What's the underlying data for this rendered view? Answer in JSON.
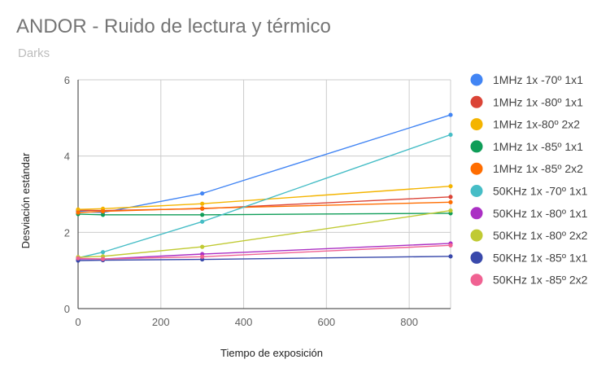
{
  "chart_data": {
    "type": "line",
    "title": "ANDOR - Ruido de lectura y térmico",
    "subtitle": "Darks",
    "xlabel": "Tiempo de exposición",
    "ylabel": "Desviación estándar",
    "xlim": [
      0,
      900
    ],
    "ylim": [
      0,
      6
    ],
    "xticks": [
      0,
      200,
      400,
      600,
      800
    ],
    "yticks": [
      0,
      2,
      4,
      6
    ],
    "grid": true,
    "legend": "right",
    "series": [
      {
        "name": "1MHz 1x -70º 1x1",
        "color": "#4285f4",
        "x": [
          0,
          60,
          300,
          900
        ],
        "y": [
          2.55,
          2.52,
          3.02,
          5.08
        ]
      },
      {
        "name": "1MHz 1x -80º 1x1",
        "color": "#db4437",
        "x": [
          0,
          60,
          300,
          900
        ],
        "y": [
          2.58,
          2.57,
          2.62,
          2.93
        ]
      },
      {
        "name": "1MHz 1x-80º 2x2",
        "color": "#f4b400",
        "x": [
          0,
          60,
          300,
          900
        ],
        "y": [
          2.6,
          2.62,
          2.75,
          3.21
        ]
      },
      {
        "name": "1MHz 1x -85º 1x1",
        "color": "#0f9d58",
        "x": [
          0,
          60,
          300,
          900
        ],
        "y": [
          2.48,
          2.46,
          2.46,
          2.5
        ]
      },
      {
        "name": "1MHz 1x -85º 2x2",
        "color": "#ff6d00",
        "x": [
          0,
          60,
          300,
          900
        ],
        "y": [
          2.52,
          2.55,
          2.63,
          2.79
        ]
      },
      {
        "name": "50KHz 1x -70º 1x1",
        "color": "#46bdc6",
        "x": [
          0,
          60,
          300,
          900
        ],
        "y": [
          1.33,
          1.48,
          2.28,
          4.56
        ]
      },
      {
        "name": "50KHz 1x -80º 1x1",
        "color": "#ab30c4",
        "x": [
          0,
          60,
          300,
          900
        ],
        "y": [
          1.3,
          1.3,
          1.43,
          1.71
        ]
      },
      {
        "name": "50KHz 1x -80º 2x2",
        "color": "#c0ca33",
        "x": [
          0,
          60,
          300,
          900
        ],
        "y": [
          1.35,
          1.37,
          1.62,
          2.57
        ]
      },
      {
        "name": "50KHz 1x -85º 1x1",
        "color": "#3949ab",
        "x": [
          0,
          60,
          300,
          900
        ],
        "y": [
          1.26,
          1.27,
          1.29,
          1.37
        ]
      },
      {
        "name": "50KHz 1x -85º 2x2",
        "color": "#f06292",
        "x": [
          0,
          60,
          300,
          900
        ],
        "y": [
          1.32,
          1.3,
          1.36,
          1.66
        ]
      }
    ]
  }
}
